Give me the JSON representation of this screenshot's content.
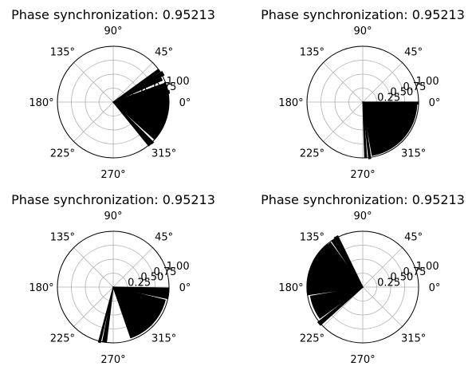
{
  "chart_data": [
    {
      "type": "polar-histogram",
      "title": "Phase synchronization: 0.95213",
      "theta_tick_labels": [
        "0°",
        "45°",
        "90°",
        "135°",
        "180°",
        "225°",
        "270°",
        "315°"
      ],
      "r_tick_labels": [
        "0.25",
        "0.50",
        "0.75",
        "1.00"
      ],
      "rlim": [
        0,
        1.0
      ],
      "grid": true,
      "bar_color": "#000000",
      "bars": [
        {
          "theta_start_deg": 28,
          "theta_end_deg": 32,
          "r": 1.03
        },
        {
          "theta_start_deg": 33,
          "theta_end_deg": 36,
          "r": 1.0
        },
        {
          "theta_start_deg": 24,
          "theta_end_deg": 27,
          "r": 0.96
        },
        {
          "theta_start_deg": 9,
          "theta_end_deg": 12,
          "r": 1.02
        },
        {
          "theta_start_deg": 13,
          "theta_end_deg": 16,
          "r": 0.98
        },
        {
          "theta_start_deg": -42,
          "theta_end_deg": 20,
          "r": 0.99
        },
        {
          "theta_start_deg": -47,
          "theta_end_deg": -45,
          "r": 1.02
        },
        {
          "theta_start_deg": -51,
          "theta_end_deg": -48,
          "r": 1.01
        }
      ]
    },
    {
      "type": "polar-histogram",
      "title": "Phase synchronization: 0.95213",
      "theta_tick_labels": [
        "0°",
        "45°",
        "90°",
        "135°",
        "180°",
        "225°",
        "270°",
        "315°"
      ],
      "r_tick_labels": [
        "0.25",
        "0.50",
        "0.75",
        "1.00"
      ],
      "rlim": [
        0,
        1.0
      ],
      "grid": true,
      "bar_color": "#000000",
      "bars": [
        {
          "theta_start_deg": -2,
          "theta_end_deg": 0,
          "r": 1.0
        },
        {
          "theta_start_deg": -14,
          "theta_end_deg": -2,
          "r": 0.97
        },
        {
          "theta_start_deg": -80,
          "theta_end_deg": -15,
          "r": 0.97
        },
        {
          "theta_start_deg": -84,
          "theta_end_deg": -82,
          "r": 1.02
        },
        {
          "theta_start_deg": -88,
          "theta_end_deg": -86,
          "r": 1.0
        }
      ]
    },
    {
      "type": "polar-histogram",
      "title": "Phase synchronization: 0.95213",
      "theta_tick_labels": [
        "0°",
        "45°",
        "90°",
        "135°",
        "180°",
        "225°",
        "270°",
        "315°"
      ],
      "r_tick_labels": [
        "0.25",
        "0.50",
        "0.75",
        "1.00"
      ],
      "rlim": [
        0,
        1.0
      ],
      "grid": true,
      "bar_color": "#000000",
      "bars": [
        {
          "theta_start_deg": -12,
          "theta_end_deg": -1,
          "r": 1.0
        },
        {
          "theta_start_deg": -70,
          "theta_end_deg": -14,
          "r": 0.96
        },
        {
          "theta_start_deg": -71,
          "theta_end_deg": -67,
          "r": 0.96
        },
        {
          "theta_start_deg": -105,
          "theta_end_deg": -103,
          "r": 1.02
        },
        {
          "theta_start_deg": -101,
          "theta_end_deg": -97,
          "r": 1.0
        }
      ]
    },
    {
      "type": "polar-histogram",
      "title": "Phase synchronization: 0.95213",
      "theta_tick_labels": [
        "0°",
        "45°",
        "90°",
        "135°",
        "180°",
        "225°",
        "270°",
        "315°"
      ],
      "r_tick_labels": [
        "0.25",
        "0.50",
        "0.75",
        "1.00"
      ],
      "rlim": [
        0,
        1.0
      ],
      "grid": true,
      "bar_color": "#000000",
      "bars": [
        {
          "theta_start_deg": 116,
          "theta_end_deg": 120,
          "r": 1.02
        },
        {
          "theta_start_deg": 121,
          "theta_end_deg": 124,
          "r": 1.0
        },
        {
          "theta_start_deg": 126,
          "theta_end_deg": 129,
          "r": 0.98
        },
        {
          "theta_start_deg": 130,
          "theta_end_deg": 188,
          "r": 1.0
        },
        {
          "theta_start_deg": 190,
          "theta_end_deg": 216,
          "r": 0.95
        },
        {
          "theta_start_deg": 218,
          "theta_end_deg": 222,
          "r": 1.02
        }
      ]
    }
  ]
}
